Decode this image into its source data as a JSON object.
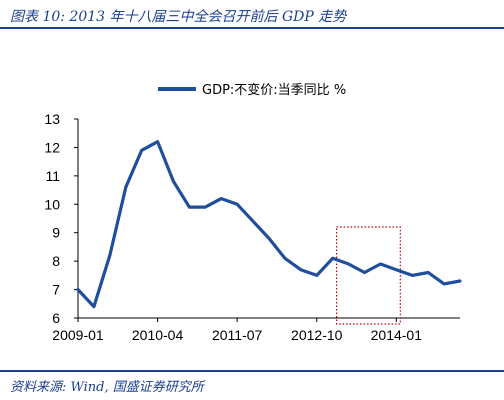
{
  "figure": {
    "title": "图表 10:  2013 年十八届三中全会召开前后 GDP 走势",
    "source": "资料来源:  Wind,  国盛证券研究所"
  },
  "colors": {
    "series": "#1f4e9c",
    "highlight_box": "#c00000",
    "frame": "#1a3f8f"
  },
  "chart_data": {
    "type": "line",
    "title": "",
    "xlabel": "",
    "ylabel": "",
    "ylim": [
      6,
      13
    ],
    "yticks": [
      6,
      7,
      8,
      9,
      10,
      11,
      12,
      13
    ],
    "xticks": [
      "2009-01",
      "2010-04",
      "2011-07",
      "2012-10",
      "2014-01"
    ],
    "grid": false,
    "legend": "top-center",
    "series": [
      {
        "name": "GDP:不变价:当季同比 %",
        "x": [
          "2009-01",
          "2009-04",
          "2009-07",
          "2009-10",
          "2010-01",
          "2010-04",
          "2010-07",
          "2010-10",
          "2011-01",
          "2011-04",
          "2011-07",
          "2011-10",
          "2012-01",
          "2012-04",
          "2012-07",
          "2012-10",
          "2013-01",
          "2013-04",
          "2013-07",
          "2013-10",
          "2014-01",
          "2014-04",
          "2014-07",
          "2014-10",
          "2015-01"
        ],
        "values": [
          7.0,
          6.4,
          8.2,
          10.6,
          11.9,
          12.2,
          10.8,
          9.9,
          9.9,
          10.2,
          10.0,
          9.4,
          8.8,
          8.1,
          7.7,
          7.5,
          8.1,
          7.9,
          7.6,
          7.9,
          7.7,
          7.5,
          7.6,
          7.2,
          7.3
        ]
      }
    ],
    "annotations": [
      {
        "type": "dotted-box",
        "x_from": "2013-04",
        "x_to": "2014-01",
        "y_from": 6,
        "y_to": 9.2
      }
    ]
  }
}
